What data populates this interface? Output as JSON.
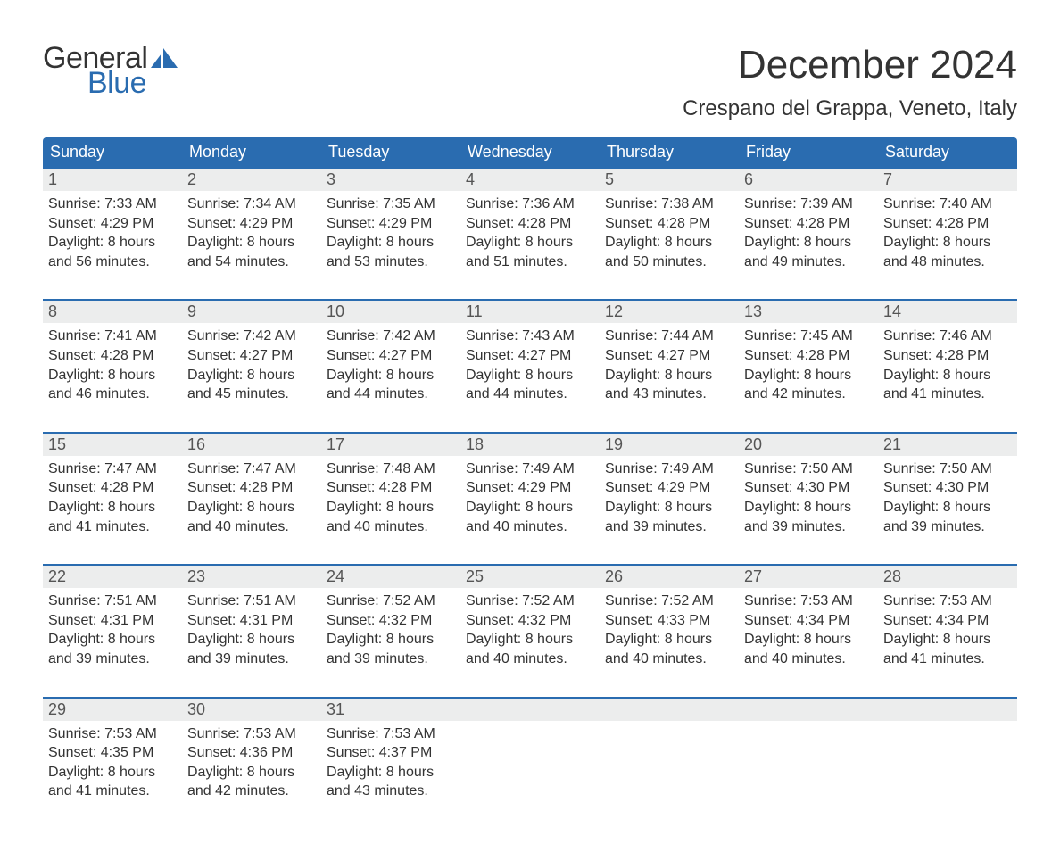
{
  "brand": {
    "word1": "General",
    "word2": "Blue",
    "sail_color": "#2a6cb0",
    "text_color": "#333333"
  },
  "header": {
    "month_title": "December 2024",
    "location": "Crespano del Grappa, Veneto, Italy"
  },
  "calendar": {
    "type": "table",
    "columns": [
      "Sunday",
      "Monday",
      "Tuesday",
      "Wednesday",
      "Thursday",
      "Friday",
      "Saturday"
    ],
    "colors": {
      "header_bg": "#2a6cb0",
      "header_text": "#ffffff",
      "row_accent": "#2a6cb0",
      "daynum_bg": "#eceded",
      "daynum_text": "#555555",
      "body_text": "#333333",
      "background": "#ffffff"
    },
    "typography": {
      "header_fontsize": 18,
      "daynum_fontsize": 18,
      "body_fontsize": 16
    },
    "weeks": [
      [
        {
          "n": "1",
          "sr": "Sunrise: 7:33 AM",
          "ss": "Sunset: 4:29 PM",
          "d1": "Daylight: 8 hours",
          "d2": "and 56 minutes."
        },
        {
          "n": "2",
          "sr": "Sunrise: 7:34 AM",
          "ss": "Sunset: 4:29 PM",
          "d1": "Daylight: 8 hours",
          "d2": "and 54 minutes."
        },
        {
          "n": "3",
          "sr": "Sunrise: 7:35 AM",
          "ss": "Sunset: 4:29 PM",
          "d1": "Daylight: 8 hours",
          "d2": "and 53 minutes."
        },
        {
          "n": "4",
          "sr": "Sunrise: 7:36 AM",
          "ss": "Sunset: 4:28 PM",
          "d1": "Daylight: 8 hours",
          "d2": "and 51 minutes."
        },
        {
          "n": "5",
          "sr": "Sunrise: 7:38 AM",
          "ss": "Sunset: 4:28 PM",
          "d1": "Daylight: 8 hours",
          "d2": "and 50 minutes."
        },
        {
          "n": "6",
          "sr": "Sunrise: 7:39 AM",
          "ss": "Sunset: 4:28 PM",
          "d1": "Daylight: 8 hours",
          "d2": "and 49 minutes."
        },
        {
          "n": "7",
          "sr": "Sunrise: 7:40 AM",
          "ss": "Sunset: 4:28 PM",
          "d1": "Daylight: 8 hours",
          "d2": "and 48 minutes."
        }
      ],
      [
        {
          "n": "8",
          "sr": "Sunrise: 7:41 AM",
          "ss": "Sunset: 4:28 PM",
          "d1": "Daylight: 8 hours",
          "d2": "and 46 minutes."
        },
        {
          "n": "9",
          "sr": "Sunrise: 7:42 AM",
          "ss": "Sunset: 4:27 PM",
          "d1": "Daylight: 8 hours",
          "d2": "and 45 minutes."
        },
        {
          "n": "10",
          "sr": "Sunrise: 7:42 AM",
          "ss": "Sunset: 4:27 PM",
          "d1": "Daylight: 8 hours",
          "d2": "and 44 minutes."
        },
        {
          "n": "11",
          "sr": "Sunrise: 7:43 AM",
          "ss": "Sunset: 4:27 PM",
          "d1": "Daylight: 8 hours",
          "d2": "and 44 minutes."
        },
        {
          "n": "12",
          "sr": "Sunrise: 7:44 AM",
          "ss": "Sunset: 4:27 PM",
          "d1": "Daylight: 8 hours",
          "d2": "and 43 minutes."
        },
        {
          "n": "13",
          "sr": "Sunrise: 7:45 AM",
          "ss": "Sunset: 4:28 PM",
          "d1": "Daylight: 8 hours",
          "d2": "and 42 minutes."
        },
        {
          "n": "14",
          "sr": "Sunrise: 7:46 AM",
          "ss": "Sunset: 4:28 PM",
          "d1": "Daylight: 8 hours",
          "d2": "and 41 minutes."
        }
      ],
      [
        {
          "n": "15",
          "sr": "Sunrise: 7:47 AM",
          "ss": "Sunset: 4:28 PM",
          "d1": "Daylight: 8 hours",
          "d2": "and 41 minutes."
        },
        {
          "n": "16",
          "sr": "Sunrise: 7:47 AM",
          "ss": "Sunset: 4:28 PM",
          "d1": "Daylight: 8 hours",
          "d2": "and 40 minutes."
        },
        {
          "n": "17",
          "sr": "Sunrise: 7:48 AM",
          "ss": "Sunset: 4:28 PM",
          "d1": "Daylight: 8 hours",
          "d2": "and 40 minutes."
        },
        {
          "n": "18",
          "sr": "Sunrise: 7:49 AM",
          "ss": "Sunset: 4:29 PM",
          "d1": "Daylight: 8 hours",
          "d2": "and 40 minutes."
        },
        {
          "n": "19",
          "sr": "Sunrise: 7:49 AM",
          "ss": "Sunset: 4:29 PM",
          "d1": "Daylight: 8 hours",
          "d2": "and 39 minutes."
        },
        {
          "n": "20",
          "sr": "Sunrise: 7:50 AM",
          "ss": "Sunset: 4:30 PM",
          "d1": "Daylight: 8 hours",
          "d2": "and 39 minutes."
        },
        {
          "n": "21",
          "sr": "Sunrise: 7:50 AM",
          "ss": "Sunset: 4:30 PM",
          "d1": "Daylight: 8 hours",
          "d2": "and 39 minutes."
        }
      ],
      [
        {
          "n": "22",
          "sr": "Sunrise: 7:51 AM",
          "ss": "Sunset: 4:31 PM",
          "d1": "Daylight: 8 hours",
          "d2": "and 39 minutes."
        },
        {
          "n": "23",
          "sr": "Sunrise: 7:51 AM",
          "ss": "Sunset: 4:31 PM",
          "d1": "Daylight: 8 hours",
          "d2": "and 39 minutes."
        },
        {
          "n": "24",
          "sr": "Sunrise: 7:52 AM",
          "ss": "Sunset: 4:32 PM",
          "d1": "Daylight: 8 hours",
          "d2": "and 39 minutes."
        },
        {
          "n": "25",
          "sr": "Sunrise: 7:52 AM",
          "ss": "Sunset: 4:32 PM",
          "d1": "Daylight: 8 hours",
          "d2": "and 40 minutes."
        },
        {
          "n": "26",
          "sr": "Sunrise: 7:52 AM",
          "ss": "Sunset: 4:33 PM",
          "d1": "Daylight: 8 hours",
          "d2": "and 40 minutes."
        },
        {
          "n": "27",
          "sr": "Sunrise: 7:53 AM",
          "ss": "Sunset: 4:34 PM",
          "d1": "Daylight: 8 hours",
          "d2": "and 40 minutes."
        },
        {
          "n": "28",
          "sr": "Sunrise: 7:53 AM",
          "ss": "Sunset: 4:34 PM",
          "d1": "Daylight: 8 hours",
          "d2": "and 41 minutes."
        }
      ],
      [
        {
          "n": "29",
          "sr": "Sunrise: 7:53 AM",
          "ss": "Sunset: 4:35 PM",
          "d1": "Daylight: 8 hours",
          "d2": "and 41 minutes."
        },
        {
          "n": "30",
          "sr": "Sunrise: 7:53 AM",
          "ss": "Sunset: 4:36 PM",
          "d1": "Daylight: 8 hours",
          "d2": "and 42 minutes."
        },
        {
          "n": "31",
          "sr": "Sunrise: 7:53 AM",
          "ss": "Sunset: 4:37 PM",
          "d1": "Daylight: 8 hours",
          "d2": "and 43 minutes."
        },
        null,
        null,
        null,
        null
      ]
    ]
  }
}
